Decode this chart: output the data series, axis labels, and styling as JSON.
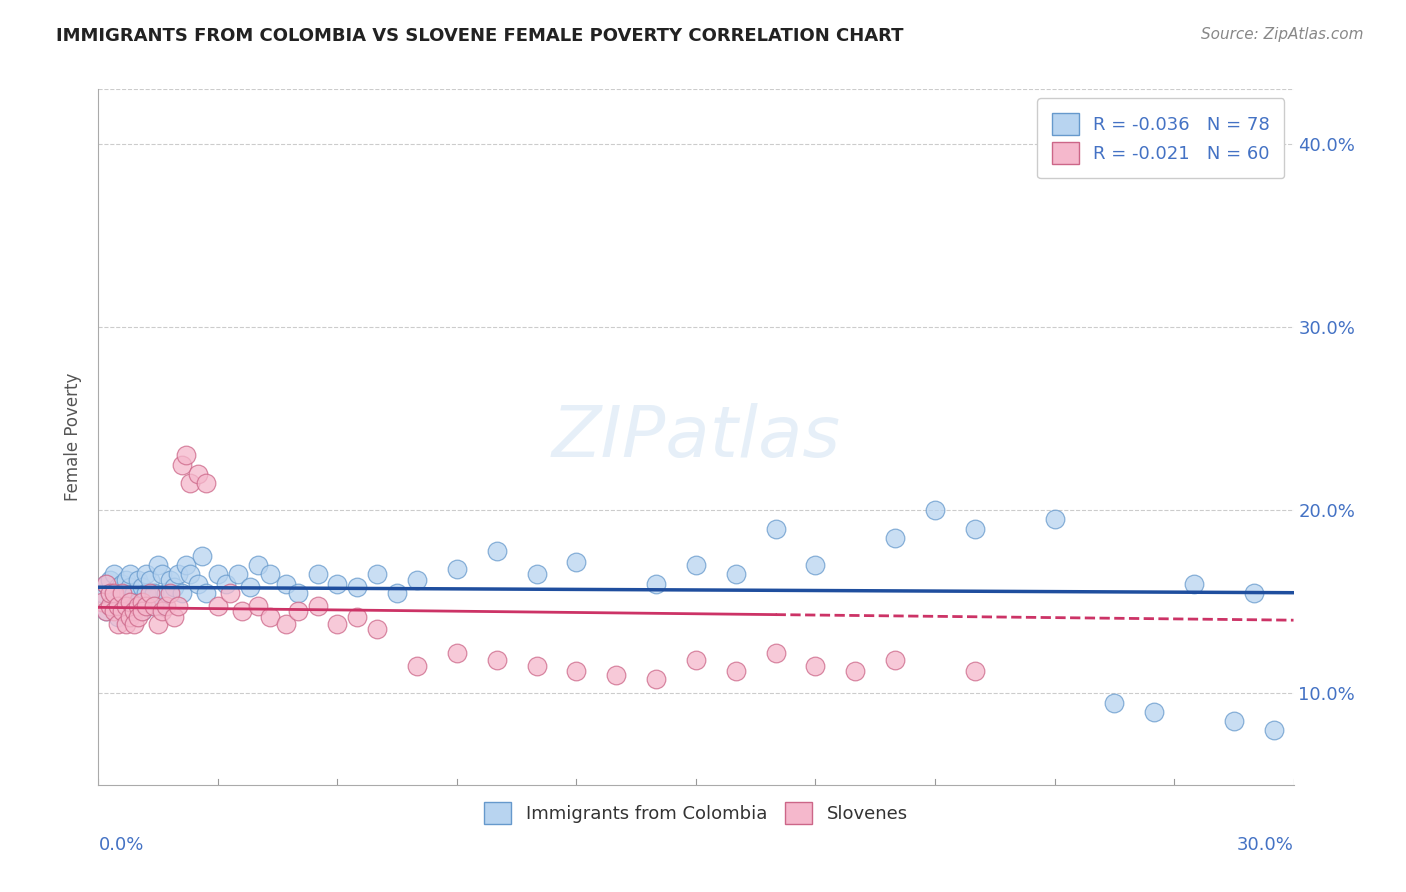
{
  "title": "IMMIGRANTS FROM COLOMBIA VS SLOVENE FEMALE POVERTY CORRELATION CHART",
  "source": "Source: ZipAtlas.com",
  "ylabel": "Female Poverty",
  "xlim": [
    0.0,
    0.3
  ],
  "ylim": [
    0.05,
    0.43
  ],
  "ytick_vals": [
    0.1,
    0.2,
    0.3,
    0.4
  ],
  "ytick_labels": [
    "10.0%",
    "20.0%",
    "30.0%",
    "40.0%"
  ],
  "series_colombia": {
    "color": "#b8d4f0",
    "edge_color": "#6699cc",
    "trend_color": "#1f4e9e",
    "trend_style": "solid",
    "label": "R = -0.036   N = 78",
    "x": [
      0.001,
      0.002,
      0.002,
      0.003,
      0.003,
      0.003,
      0.004,
      0.004,
      0.004,
      0.005,
      0.005,
      0.005,
      0.006,
      0.006,
      0.006,
      0.007,
      0.007,
      0.007,
      0.008,
      0.008,
      0.008,
      0.009,
      0.009,
      0.01,
      0.01,
      0.011,
      0.011,
      0.012,
      0.012,
      0.013,
      0.013,
      0.014,
      0.015,
      0.015,
      0.016,
      0.017,
      0.018,
      0.019,
      0.02,
      0.021,
      0.022,
      0.023,
      0.025,
      0.026,
      0.027,
      0.03,
      0.032,
      0.035,
      0.038,
      0.04,
      0.043,
      0.047,
      0.05,
      0.055,
      0.06,
      0.065,
      0.07,
      0.075,
      0.08,
      0.09,
      0.1,
      0.11,
      0.12,
      0.14,
      0.15,
      0.16,
      0.17,
      0.18,
      0.2,
      0.21,
      0.22,
      0.24,
      0.255,
      0.265,
      0.275,
      0.285,
      0.29,
      0.295
    ],
    "y": [
      0.155,
      0.16,
      0.145,
      0.155,
      0.148,
      0.162,
      0.155,
      0.148,
      0.165,
      0.158,
      0.15,
      0.142,
      0.155,
      0.16,
      0.148,
      0.155,
      0.145,
      0.162,
      0.15,
      0.158,
      0.165,
      0.155,
      0.148,
      0.162,
      0.15,
      0.158,
      0.145,
      0.165,
      0.155,
      0.148,
      0.162,
      0.155,
      0.17,
      0.148,
      0.165,
      0.155,
      0.162,
      0.158,
      0.165,
      0.155,
      0.17,
      0.165,
      0.16,
      0.175,
      0.155,
      0.165,
      0.16,
      0.165,
      0.158,
      0.17,
      0.165,
      0.16,
      0.155,
      0.165,
      0.16,
      0.158,
      0.165,
      0.155,
      0.162,
      0.168,
      0.178,
      0.165,
      0.172,
      0.16,
      0.17,
      0.165,
      0.19,
      0.17,
      0.185,
      0.2,
      0.19,
      0.195,
      0.095,
      0.09,
      0.16,
      0.085,
      0.155,
      0.08
    ]
  },
  "series_slovenes": {
    "color": "#f5b8cc",
    "edge_color": "#cc6688",
    "trend_color": "#cc3366",
    "trend_style": "dashed",
    "label": "R = -0.021   N = 60",
    "x": [
      0.001,
      0.002,
      0.002,
      0.003,
      0.003,
      0.004,
      0.004,
      0.005,
      0.005,
      0.006,
      0.006,
      0.007,
      0.007,
      0.008,
      0.008,
      0.009,
      0.009,
      0.01,
      0.01,
      0.011,
      0.011,
      0.012,
      0.013,
      0.014,
      0.015,
      0.016,
      0.017,
      0.018,
      0.019,
      0.02,
      0.021,
      0.022,
      0.023,
      0.025,
      0.027,
      0.03,
      0.033,
      0.036,
      0.04,
      0.043,
      0.047,
      0.05,
      0.055,
      0.06,
      0.065,
      0.07,
      0.08,
      0.09,
      0.1,
      0.11,
      0.12,
      0.13,
      0.14,
      0.15,
      0.16,
      0.17,
      0.18,
      0.19,
      0.2,
      0.22
    ],
    "y": [
      0.15,
      0.145,
      0.16,
      0.148,
      0.155,
      0.145,
      0.155,
      0.148,
      0.138,
      0.145,
      0.155,
      0.148,
      0.138,
      0.142,
      0.15,
      0.145,
      0.138,
      0.148,
      0.142,
      0.15,
      0.145,
      0.148,
      0.155,
      0.148,
      0.138,
      0.145,
      0.148,
      0.155,
      0.142,
      0.148,
      0.225,
      0.23,
      0.215,
      0.22,
      0.215,
      0.148,
      0.155,
      0.145,
      0.148,
      0.142,
      0.138,
      0.145,
      0.148,
      0.138,
      0.142,
      0.135,
      0.115,
      0.122,
      0.118,
      0.115,
      0.112,
      0.11,
      0.108,
      0.118,
      0.112,
      0.122,
      0.115,
      0.112,
      0.118,
      0.112
    ]
  },
  "colombia_trend_y": [
    0.158,
    0.155
  ],
  "slovene_trend_y": [
    0.147,
    0.14
  ],
  "watermark_text": "ZIPatlas",
  "background_color": "#ffffff",
  "grid_color": "#cccccc",
  "axis_color": "#aaaaaa",
  "tick_color": "#4472c4",
  "title_color": "#222222",
  "source_color": "#888888",
  "ylabel_color": "#555555"
}
